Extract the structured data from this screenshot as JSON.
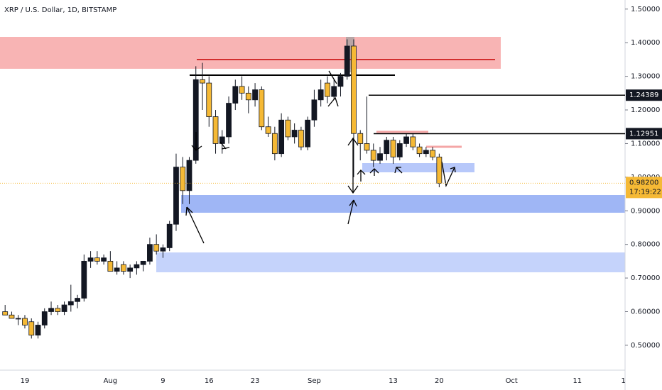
{
  "chart_data": {
    "type": "candlestick",
    "title": "XRP / U.S. Dollar, 1D, BITSTAMP",
    "categories": [
      null,
      null,
      null,
      "19",
      null,
      null,
      null,
      null,
      null,
      null,
      null,
      null,
      null,
      null,
      null,
      null,
      "Aug",
      null,
      null,
      null,
      null,
      null,
      null,
      null,
      "9",
      null,
      null,
      null,
      null,
      null,
      null,
      "16",
      null,
      null,
      null,
      null,
      null,
      null,
      "23",
      null,
      null,
      null,
      null,
      null,
      null,
      null,
      null,
      "Sep",
      null,
      null,
      null,
      null,
      null,
      null,
      null,
      null,
      null,
      null,
      null,
      "13",
      null,
      null,
      null,
      null,
      null,
      null,
      "20",
      null,
      null,
      null,
      null,
      null,
      null,
      null,
      null,
      null,
      null,
      "Oct",
      null,
      null,
      null,
      null,
      null,
      null,
      null,
      null,
      null,
      "11",
      null,
      null,
      null,
      null,
      null,
      null,
      "1"
    ],
    "open": [
      0.6,
      0.59,
      0.58,
      0.58,
      0.57,
      0.53,
      0.56,
      0.6,
      0.61,
      0.6,
      0.62,
      0.63,
      0.64,
      0.75,
      0.76,
      0.75,
      0.75,
      0.72,
      0.74,
      0.72,
      0.73,
      0.74,
      0.75,
      0.8,
      0.78,
      0.79,
      0.86,
      1.03,
      0.96,
      1.05,
      1.29,
      1.28,
      1.18,
      1.1,
      1.12,
      1.22,
      1.27,
      1.25,
      1.23,
      1.26,
      1.15,
      1.13,
      1.07,
      1.17,
      1.12,
      1.14,
      1.09,
      1.17,
      1.23,
      1.28,
      1.24,
      1.27,
      1.3,
      1.39,
      1.13,
      1.1,
      1.08,
      1.05,
      1.07,
      1.11,
      1.06,
      1.1,
      1.12,
      1.09,
      1.07,
      1.08,
      1.06,
      null,
      null,
      null,
      null,
      null,
      null,
      null,
      null,
      null,
      null,
      null,
      null,
      null,
      null,
      null,
      null,
      null,
      null,
      null,
      null,
      null,
      null,
      null,
      null,
      null,
      null,
      null,
      null
    ],
    "high": [
      0.62,
      0.6,
      0.59,
      0.59,
      0.58,
      0.57,
      0.61,
      0.63,
      0.62,
      0.63,
      0.68,
      0.65,
      0.77,
      0.78,
      0.78,
      0.77,
      0.78,
      0.75,
      0.75,
      0.74,
      0.75,
      0.75,
      0.82,
      0.83,
      0.8,
      0.87,
      1.07,
      1.06,
      1.06,
      1.33,
      1.34,
      1.3,
      1.2,
      1.14,
      1.24,
      1.29,
      1.3,
      1.27,
      1.28,
      1.27,
      1.18,
      1.15,
      1.19,
      1.18,
      1.16,
      1.15,
      1.18,
      1.26,
      1.29,
      1.3,
      1.29,
      1.31,
      1.41,
      1.41,
      1.14,
      1.24,
      1.1,
      1.09,
      1.12,
      1.12,
      1.11,
      1.13,
      1.13,
      1.1,
      1.09,
      1.09,
      1.07,
      null,
      null,
      null,
      null,
      null,
      null,
      null,
      null,
      null,
      null,
      null,
      null,
      null,
      null,
      null,
      null,
      null,
      null,
      null,
      null,
      null,
      null,
      null,
      null,
      null,
      null,
      null,
      null
    ],
    "low": [
      0.59,
      0.58,
      0.56,
      0.55,
      0.52,
      0.52,
      0.55,
      0.59,
      0.59,
      0.59,
      0.6,
      0.61,
      0.63,
      0.73,
      0.74,
      0.74,
      0.72,
      0.71,
      0.71,
      0.7,
      0.71,
      0.72,
      0.74,
      0.77,
      0.76,
      0.78,
      0.84,
      0.92,
      0.92,
      1.04,
      1.2,
      1.15,
      1.07,
      1.07,
      1.1,
      1.2,
      1.23,
      1.19,
      1.21,
      1.14,
      1.12,
      1.05,
      1.06,
      1.11,
      1.1,
      1.08,
      1.08,
      1.15,
      1.21,
      1.22,
      1.23,
      1.24,
      1.29,
      1.0,
      1.05,
      1.07,
      1.03,
      1.04,
      1.05,
      1.04,
      1.05,
      1.09,
      1.08,
      1.06,
      1.06,
      1.05,
      0.97,
      null,
      null,
      null,
      null,
      null,
      null,
      null,
      null,
      null,
      null,
      null,
      null,
      null,
      null,
      null,
      null,
      null,
      null,
      null,
      null,
      null,
      null,
      null,
      null,
      null,
      null,
      null,
      null
    ],
    "close": [
      0.59,
      0.58,
      0.58,
      0.56,
      0.53,
      0.56,
      0.6,
      0.61,
      0.6,
      0.62,
      0.63,
      0.64,
      0.75,
      0.76,
      0.75,
      0.76,
      0.72,
      0.73,
      0.72,
      0.73,
      0.74,
      0.75,
      0.8,
      0.78,
      0.79,
      0.86,
      1.03,
      0.96,
      1.05,
      1.29,
      1.28,
      1.18,
      1.1,
      1.12,
      1.22,
      1.27,
      1.25,
      1.23,
      1.26,
      1.15,
      1.13,
      1.07,
      1.17,
      1.12,
      1.14,
      1.09,
      1.17,
      1.23,
      1.26,
      1.24,
      1.27,
      1.3,
      1.39,
      1.13,
      1.1,
      1.08,
      1.05,
      1.07,
      1.11,
      1.06,
      1.1,
      1.12,
      1.09,
      1.07,
      1.08,
      1.06,
      0.982,
      null,
      null,
      null,
      null,
      null,
      null,
      null,
      null,
      null,
      null,
      null,
      null,
      null,
      null,
      null,
      null,
      null,
      null,
      null,
      null,
      null,
      null,
      null,
      null,
      null,
      null,
      null,
      null
    ],
    "up_color": "#131722",
    "down_color": "#f5b935",
    "ylim": [
      0.426,
      1.527
    ],
    "yticks": [
      {
        "value": 0.5,
        "label": "0.50000"
      },
      {
        "value": 0.6,
        "label": "0.60000"
      },
      {
        "value": 0.7,
        "label": "0.70000"
      },
      {
        "value": 0.8,
        "label": "0.80000"
      },
      {
        "value": 0.9,
        "label": "0.90000"
      },
      {
        "value": 1.0,
        "label": "1.00000"
      },
      {
        "value": 1.1,
        "label": "1.10000"
      },
      {
        "value": 1.2,
        "label": "1.20000"
      },
      {
        "value": 1.3,
        "label": "1.30000"
      },
      {
        "value": 1.4,
        "label": "1.40000"
      },
      {
        "value": 1.5,
        "label": "1.50000"
      }
    ],
    "price_lines": [
      1.24389,
      1.12951
    ],
    "last_price": {
      "value": 0.982,
      "label": "0.98200"
    },
    "countdown": "17:19:22"
  }
}
